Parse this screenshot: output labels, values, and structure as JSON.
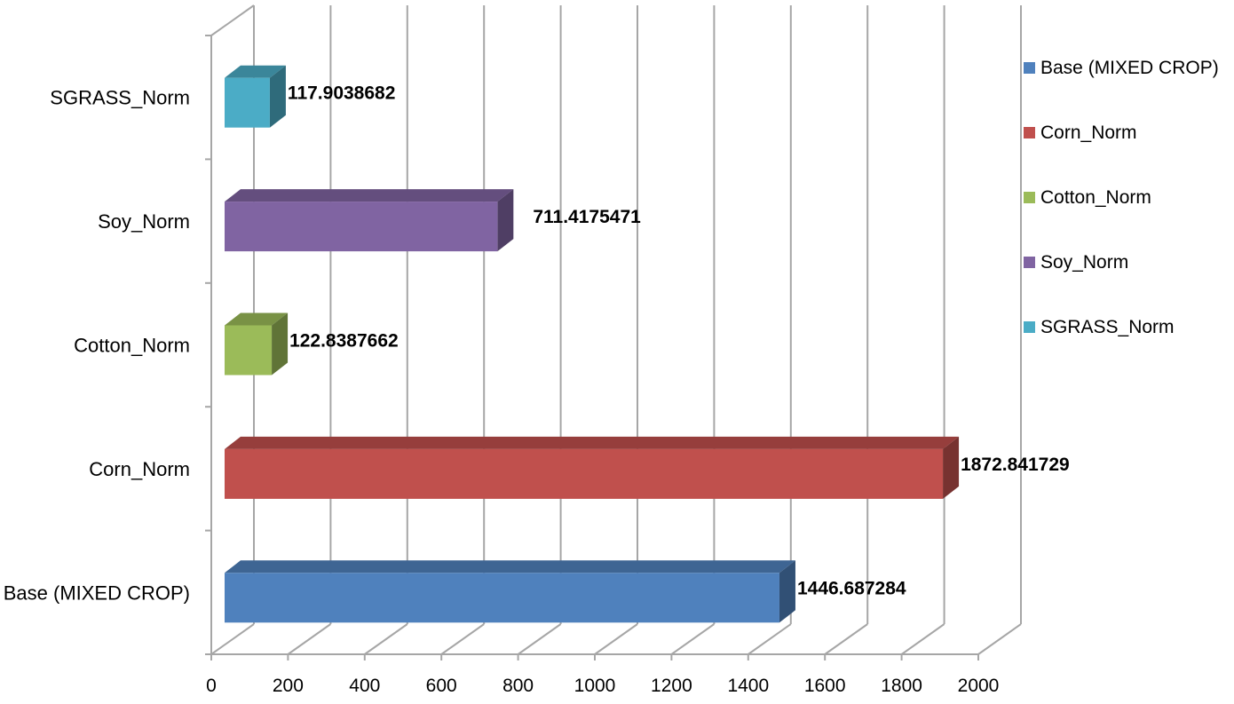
{
  "chart_data": {
    "type": "bar",
    "orientation": "horizontal",
    "three_d": true,
    "categories": [
      "Base (MIXED CROP)",
      "Corn_Norm",
      "Cotton_Norm",
      "Soy_Norm",
      "SGRASS_Norm"
    ],
    "values": [
      1446.687284,
      1872.841729,
      122.8387662,
      711.4175471,
      117.9038682
    ],
    "data_labels": [
      "1446.687284",
      "1872.841729",
      "122.8387662",
      "711.4175471",
      "117.9038682"
    ],
    "xlim": [
      0,
      2000
    ],
    "x_ticks": [
      0,
      200,
      400,
      600,
      800,
      1000,
      1200,
      1400,
      1600,
      1800,
      2000
    ],
    "title": "",
    "xlabel": "",
    "ylabel": "",
    "grid": "vertical",
    "legend": {
      "position": "right",
      "entries": [
        "Base (MIXED CROP)",
        "Corn_Norm",
        "Cotton_Norm",
        "Soy_Norm",
        "SGRASS_Norm"
      ]
    },
    "colors": {
      "Base (MIXED CROP)": "#4F81BD",
      "Corn_Norm": "#C0504D",
      "Cotton_Norm": "#9BBB59",
      "Soy_Norm": "#8064A2",
      "SGRASS_Norm": "#4BACC6"
    },
    "grid_color": "#A6A6A6"
  }
}
